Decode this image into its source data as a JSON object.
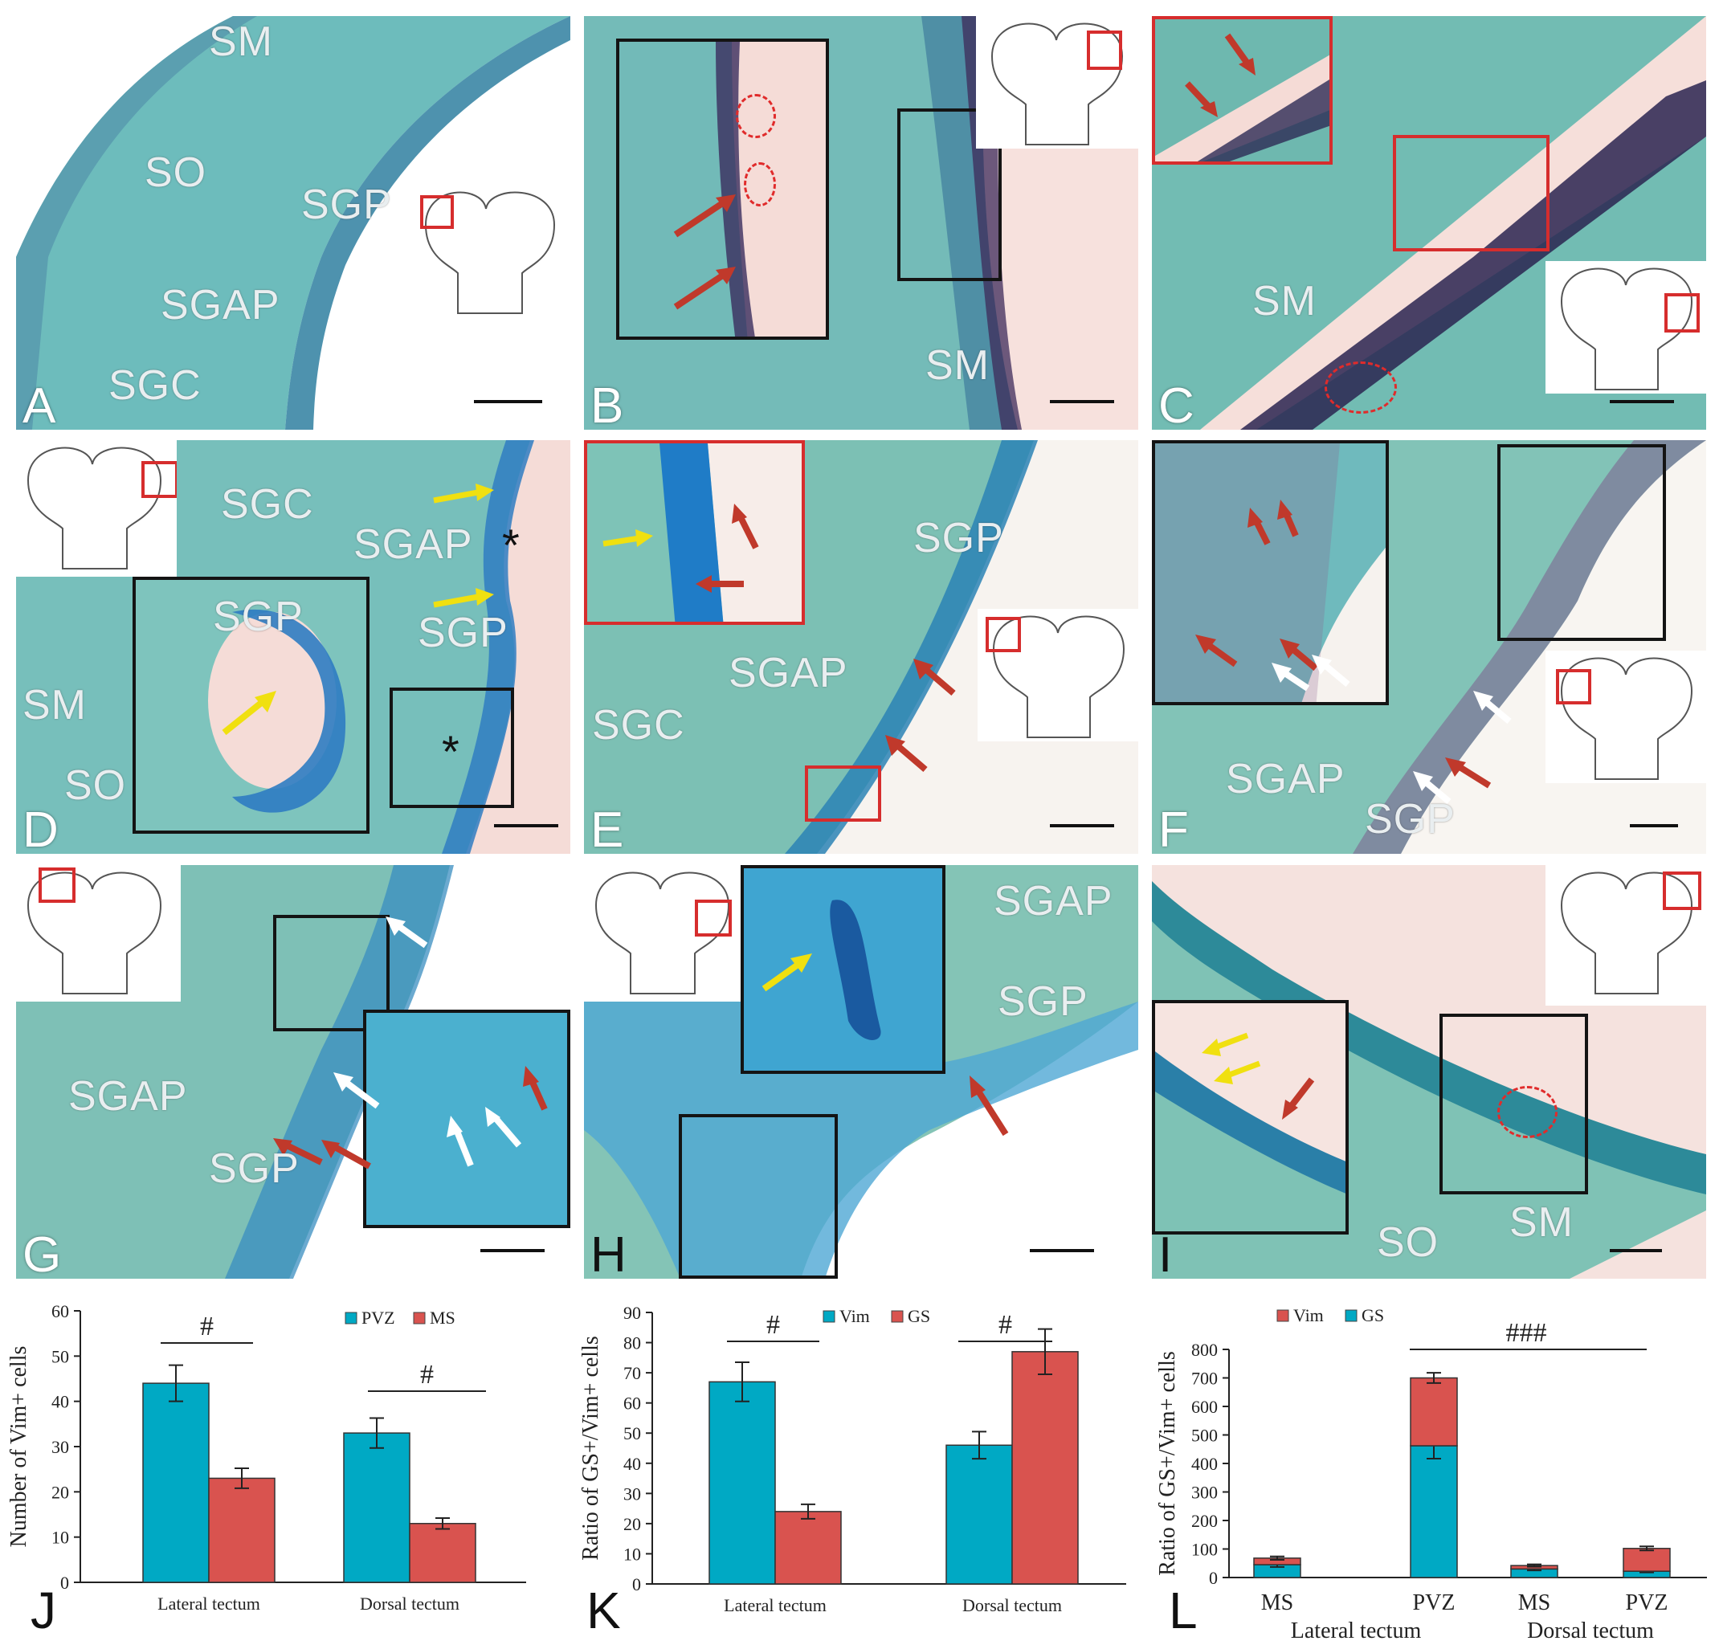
{
  "colors": {
    "teal": "#00a9c4",
    "red": "#d9534f",
    "tissue": "#4aa9a7",
    "arrow_red": "#c0392b",
    "arrow_yellow": "#f0e010",
    "arrow_white": "#ffffff"
  },
  "icons": [
    "red-arrow-icon",
    "yellow-arrow-icon",
    "white-arrow-icon",
    "brain-schematic-icon",
    "asterisk-icon"
  ],
  "panels": {
    "A": {
      "letter": "A",
      "labels": [
        "SM",
        "SO",
        "SGP",
        "SGAP",
        "SGC"
      ]
    },
    "B": {
      "letter": "B",
      "labels": [
        "SM"
      ]
    },
    "C": {
      "letter": "C",
      "labels": [
        "SM"
      ]
    },
    "D": {
      "letter": "D",
      "labels": [
        "SGC",
        "SGAP",
        "SGP",
        "SM",
        "SO",
        "SGP"
      ],
      "asterisk": "*"
    },
    "E": {
      "letter": "E",
      "labels": [
        "SGP",
        "SGAP",
        "SGC"
      ]
    },
    "F": {
      "letter": "F",
      "labels": [
        "SGAP",
        "SGP"
      ]
    },
    "G": {
      "letter": "G",
      "labels": [
        "SGAP",
        "SGP"
      ]
    },
    "H": {
      "letter": "H",
      "labels": [
        "SGAP",
        "SGP"
      ]
    },
    "I": {
      "letter": "I",
      "labels": [
        "SO",
        "SM"
      ]
    }
  },
  "chart_data": [
    {
      "panel": "J",
      "type": "bar",
      "ylabel": "Number of Vim+ cells",
      "ylim": [
        0,
        60
      ],
      "yticks": [
        0,
        10,
        20,
        30,
        40,
        50,
        60
      ],
      "categories": [
        "Lateral tectum",
        "Dorsal tectum"
      ],
      "series": [
        {
          "name": "PVZ",
          "values": [
            44,
            33
          ],
          "errors": [
            4,
            3.3
          ]
        },
        {
          "name": "MS",
          "values": [
            23,
            13
          ],
          "errors": [
            2.2,
            1.2
          ]
        }
      ],
      "legend": "top-center",
      "annotations": [
        "#",
        "#"
      ]
    },
    {
      "panel": "K",
      "type": "bar",
      "ylabel": "Ratio of GS+/Vim+ cells",
      "ylim": [
        0,
        90
      ],
      "yticks": [
        0,
        10,
        20,
        30,
        40,
        50,
        60,
        70,
        80,
        90
      ],
      "categories": [
        "Lateral tectum",
        "Dorsal tectum"
      ],
      "series": [
        {
          "name": "Vim",
          "values": [
            67,
            46
          ],
          "errors": [
            6.5,
            4.5
          ]
        },
        {
          "name": "GS",
          "values": [
            24,
            77
          ],
          "errors": [
            2.4,
            7.5
          ]
        }
      ],
      "legend": "top-center",
      "annotations": [
        "#",
        "#"
      ]
    },
    {
      "panel": "L",
      "type": "bar",
      "stacked": true,
      "ylabel": "Ratio of GS+/Vim+ cells",
      "ylim": [
        0,
        800
      ],
      "yticks": [
        0,
        100,
        200,
        300,
        400,
        500,
        600,
        700,
        800
      ],
      "categories": [
        "MS",
        "PVZ",
        "MS",
        "PVZ"
      ],
      "groups": [
        "Lateral tectum",
        "Dorsal tectum"
      ],
      "series": [
        {
          "name": "GS",
          "values": [
            45,
            462,
            30,
            22
          ],
          "errors": [
            8,
            45,
            5,
            4
          ]
        },
        {
          "name": "Vim",
          "values": [
            23,
            238,
            12,
            80
          ],
          "errors": [
            6,
            18,
            4,
            7
          ]
        }
      ],
      "legend": "top-left",
      "annotations": [
        "###"
      ]
    }
  ]
}
